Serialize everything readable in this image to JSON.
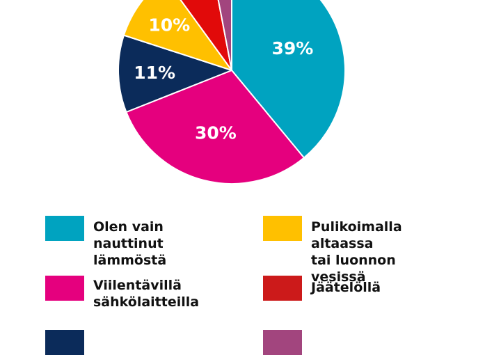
{
  "chart_data": {
    "type": "pie",
    "slices": [
      {
        "label": "Olen vain nauttinut lämmöstä",
        "value": 39,
        "display": "39%",
        "color": "#00A3C0"
      },
      {
        "label": "Viilentävillä sähkölaitteilla",
        "value": 30,
        "display": "30%",
        "color": "#E5007E"
      },
      {
        "label": "",
        "value": 11,
        "display": "11%",
        "color": "#0B2B5A"
      },
      {
        "label": "Pulikoimalla altaassa tai luonnon vesissä",
        "value": 10,
        "display": "10%",
        "color": "#FFC000"
      },
      {
        "label": "Jäätelöllä",
        "value": 7,
        "display": "",
        "color": "#E10A0A"
      },
      {
        "label": "",
        "value": 3,
        "display": "",
        "color": "#A2457E"
      }
    ]
  },
  "legend": {
    "items": [
      {
        "label": "Olen vain nauttinut\nlämmöstä",
        "color": "#00A3C0"
      },
      {
        "label": "Viilentävillä\nsähkölaitteilla",
        "color": "#E5007E"
      },
      {
        "label": "",
        "color": "#0B2B5A"
      },
      {
        "label": "Pulikoimalla altaassa\ntai luonnon vesissä",
        "color": "#FFC000"
      },
      {
        "label": "Jäätelöllä",
        "color": "#CC1A1A"
      },
      {
        "label": "",
        "color": "#A2457E"
      }
    ]
  }
}
